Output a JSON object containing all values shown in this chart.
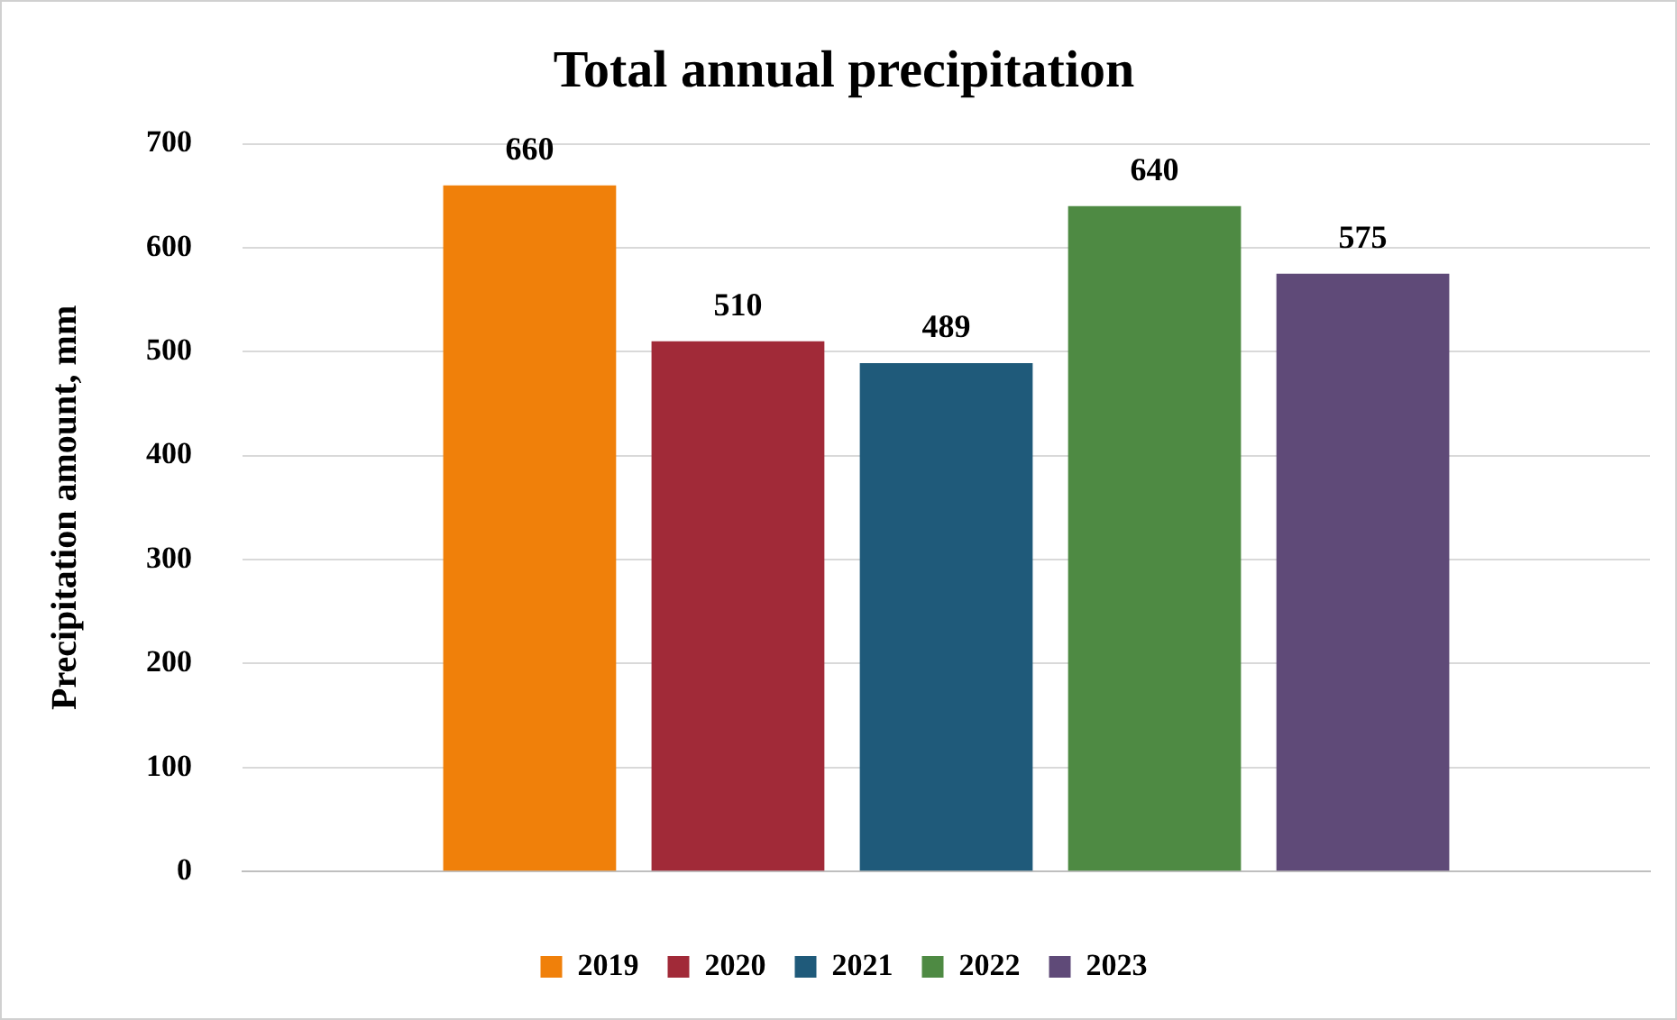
{
  "chart_data": {
    "type": "bar",
    "title": "Total annual precipitation",
    "ylabel": "Precipitation amount, mm",
    "categories": [
      null
    ],
    "series": [
      {
        "name": "2019",
        "color": "#f0800a",
        "values": [
          660
        ]
      },
      {
        "name": "2020",
        "color": "#a12a38",
        "values": [
          510
        ]
      },
      {
        "name": "2021",
        "color": "#1f5a7a",
        "values": [
          489
        ]
      },
      {
        "name": "2022",
        "color": "#4e8a43",
        "values": [
          640
        ]
      },
      {
        "name": "2023",
        "color": "#5f4a78",
        "values": [
          575
        ]
      }
    ],
    "ylim": [
      0,
      700
    ],
    "yticks": [
      0,
      100,
      200,
      300,
      400,
      500,
      600,
      700
    ],
    "grid": "y",
    "legend": "bottom",
    "data_labels": true
  }
}
